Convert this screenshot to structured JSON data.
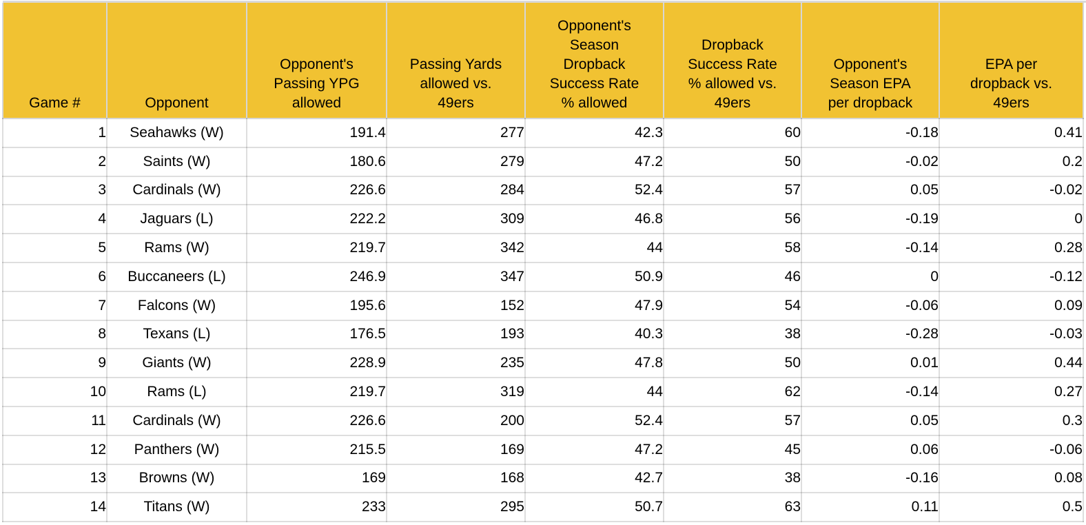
{
  "colors": {
    "header_bg": "#f1c232",
    "green": "#6aa84f",
    "yellow": "#ffff00",
    "red": "#ff0000",
    "text": "#000000",
    "gridline": "#dcdcdc"
  },
  "chart_data": {
    "type": "table",
    "columns": [
      "Game #",
      "Opponent",
      "Opponent's\nPassing YPG\nallowed",
      "Passing Yards\nallowed vs.\n49ers",
      "Opponent's\nSeason\nDropback\nSuccess Rate\n% allowed",
      "Dropback\nSuccess Rate\n% allowed vs.\n49ers",
      "Opponent's\nSeason EPA\nper dropback",
      "EPA per\ndropback vs.\n49ers"
    ],
    "rows": [
      {
        "game": "1",
        "opponent": "Seahawks (W)",
        "opp_pass_ypg": "191.4",
        "pass_yds_vs": "277",
        "opp_dropback_sr": "42.3",
        "dropback_sr_vs": "60",
        "opp_epa": "-0.18",
        "epa_vs": "0.41",
        "pass_yds_fill": "green",
        "dropback_sr_fill": "green",
        "epa_fill": "green"
      },
      {
        "game": "2",
        "opponent": "Saints (W)",
        "opp_pass_ypg": "180.6",
        "pass_yds_vs": "279",
        "opp_dropback_sr": "47.2",
        "dropback_sr_vs": "50",
        "opp_epa": "-0.02",
        "epa_vs": "0.2",
        "pass_yds_fill": "green",
        "dropback_sr_fill": "green",
        "epa_fill": "green"
      },
      {
        "game": "3",
        "opponent": "Cardinals (W)",
        "opp_pass_ypg": "226.6",
        "pass_yds_vs": "284",
        "opp_dropback_sr": "52.4",
        "dropback_sr_vs": "57",
        "opp_epa": "0.05",
        "epa_vs": "-0.02",
        "pass_yds_fill": "green",
        "dropback_sr_fill": "green",
        "epa_fill": "red"
      },
      {
        "game": "4",
        "opponent": "Jaguars (L)",
        "opp_pass_ypg": "222.2",
        "pass_yds_vs": "309",
        "opp_dropback_sr": "46.8",
        "dropback_sr_vs": "56",
        "opp_epa": "-0.19",
        "epa_vs": "0",
        "pass_yds_fill": "green",
        "dropback_sr_fill": "green",
        "epa_fill": "green"
      },
      {
        "game": "5",
        "opponent": "Rams (W)",
        "opp_pass_ypg": "219.7",
        "pass_yds_vs": "342",
        "opp_dropback_sr": "44",
        "dropback_sr_vs": "58",
        "opp_epa": "-0.14",
        "epa_vs": "0.28",
        "pass_yds_fill": "green",
        "dropback_sr_fill": "green",
        "epa_fill": "green"
      },
      {
        "game": "6",
        "opponent": "Buccaneers (L)",
        "opp_pass_ypg": "246.9",
        "pass_yds_vs": "347",
        "opp_dropback_sr": "50.9",
        "dropback_sr_vs": "46",
        "opp_epa": "0",
        "epa_vs": "-0.12",
        "pass_yds_fill": "green",
        "dropback_sr_fill": "yellow",
        "epa_fill": "red"
      },
      {
        "game": "7",
        "opponent": "Falcons (W)",
        "opp_pass_ypg": "195.6",
        "pass_yds_vs": "152",
        "opp_dropback_sr": "47.9",
        "dropback_sr_vs": "54",
        "opp_epa": "-0.06",
        "epa_vs": "0.09",
        "pass_yds_fill": "red",
        "dropback_sr_fill": "green",
        "epa_fill": "green"
      },
      {
        "game": "8",
        "opponent": "Texans (L)",
        "opp_pass_ypg": "176.5",
        "pass_yds_vs": "193",
        "opp_dropback_sr": "40.3",
        "dropback_sr_vs": "38",
        "opp_epa": "-0.28",
        "epa_vs": "-0.03",
        "pass_yds_fill": "green",
        "dropback_sr_fill": "yellow",
        "epa_fill": "green"
      },
      {
        "game": "9",
        "opponent": "Giants (W)",
        "opp_pass_ypg": "228.9",
        "pass_yds_vs": "235",
        "opp_dropback_sr": "47.8",
        "dropback_sr_vs": "50",
        "opp_epa": "0.01",
        "epa_vs": "0.44",
        "pass_yds_fill": "green",
        "dropback_sr_fill": "green",
        "epa_fill": "green"
      },
      {
        "game": "10",
        "opponent": "Rams (L)",
        "opp_pass_ypg": "219.7",
        "pass_yds_vs": "319",
        "opp_dropback_sr": "44",
        "dropback_sr_vs": "62",
        "opp_epa": "-0.14",
        "epa_vs": "0.27",
        "pass_yds_fill": "green",
        "dropback_sr_fill": "green",
        "epa_fill": "green"
      },
      {
        "game": "11",
        "opponent": "Cardinals (W)",
        "opp_pass_ypg": "226.6",
        "pass_yds_vs": "200",
        "opp_dropback_sr": "52.4",
        "dropback_sr_vs": "57",
        "opp_epa": "0.05",
        "epa_vs": "0.3",
        "pass_yds_fill": "red",
        "dropback_sr_fill": "green",
        "epa_fill": "green"
      },
      {
        "game": "12",
        "opponent": "Panthers (W)",
        "opp_pass_ypg": "215.5",
        "pass_yds_vs": "169",
        "opp_dropback_sr": "47.2",
        "dropback_sr_vs": "45",
        "opp_epa": "0.06",
        "epa_vs": "-0.06",
        "pass_yds_fill": "red",
        "dropback_sr_fill": "yellow",
        "epa_fill": "red"
      },
      {
        "game": "13",
        "opponent": "Browns (W)",
        "opp_pass_ypg": "169",
        "pass_yds_vs": "168",
        "opp_dropback_sr": "42.7",
        "dropback_sr_vs": "38",
        "opp_epa": "-0.16",
        "epa_vs": "0.08",
        "pass_yds_fill": "yellow",
        "dropback_sr_fill": "yellow",
        "epa_fill": "green"
      },
      {
        "game": "14",
        "opponent": "Titans (W)",
        "opp_pass_ypg": "233",
        "pass_yds_vs": "295",
        "opp_dropback_sr": "50.7",
        "dropback_sr_vs": "63",
        "opp_epa": "0.11",
        "epa_vs": "0.5",
        "pass_yds_fill": "green",
        "dropback_sr_fill": "green",
        "epa_fill": "green"
      }
    ]
  }
}
